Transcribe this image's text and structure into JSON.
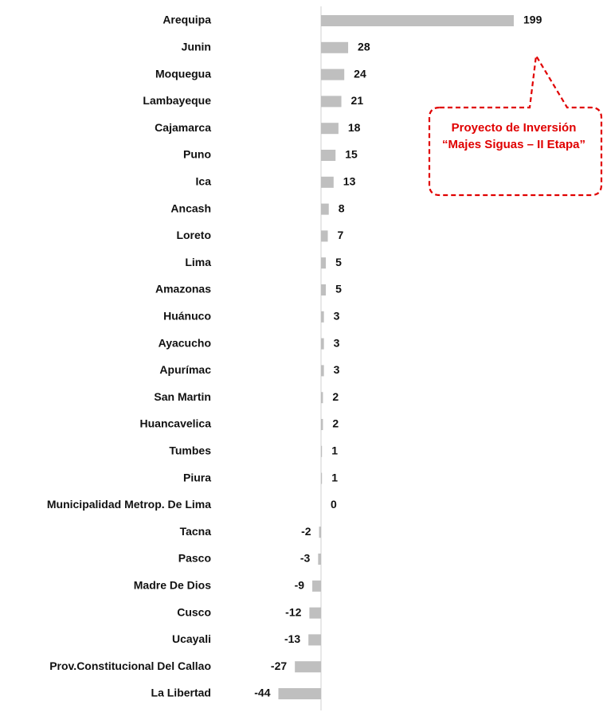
{
  "chart_data": {
    "type": "bar",
    "orientation": "horizontal",
    "color": "#bfbfbf",
    "categories": [
      "Arequipa",
      "Junin",
      "Moquegua",
      "Lambayeque",
      "Cajamarca",
      "Puno",
      "Ica",
      "Ancash",
      "Loreto",
      "Lima",
      "Amazonas",
      "Huánuco",
      "Ayacucho",
      "Apurímac",
      "San Martin",
      "Huancavelica",
      "Tumbes",
      "Piura",
      "Municipalidad Metrop. De Lima",
      "Tacna",
      "Pasco",
      "Madre De Dios",
      "Cusco",
      "Ucayali",
      "Prov.Constitucional Del Callao",
      "La Libertad"
    ],
    "values": [
      199,
      28,
      24,
      21,
      18,
      15,
      13,
      8,
      7,
      5,
      5,
      3,
      3,
      3,
      2,
      2,
      1,
      1,
      0,
      -2,
      -3,
      -9,
      -12,
      -13,
      -27,
      -44
    ],
    "annotation": "Proyecto de Inversión “Majes Siguas – II Etapa”",
    "annotation_color": "#e00000"
  }
}
